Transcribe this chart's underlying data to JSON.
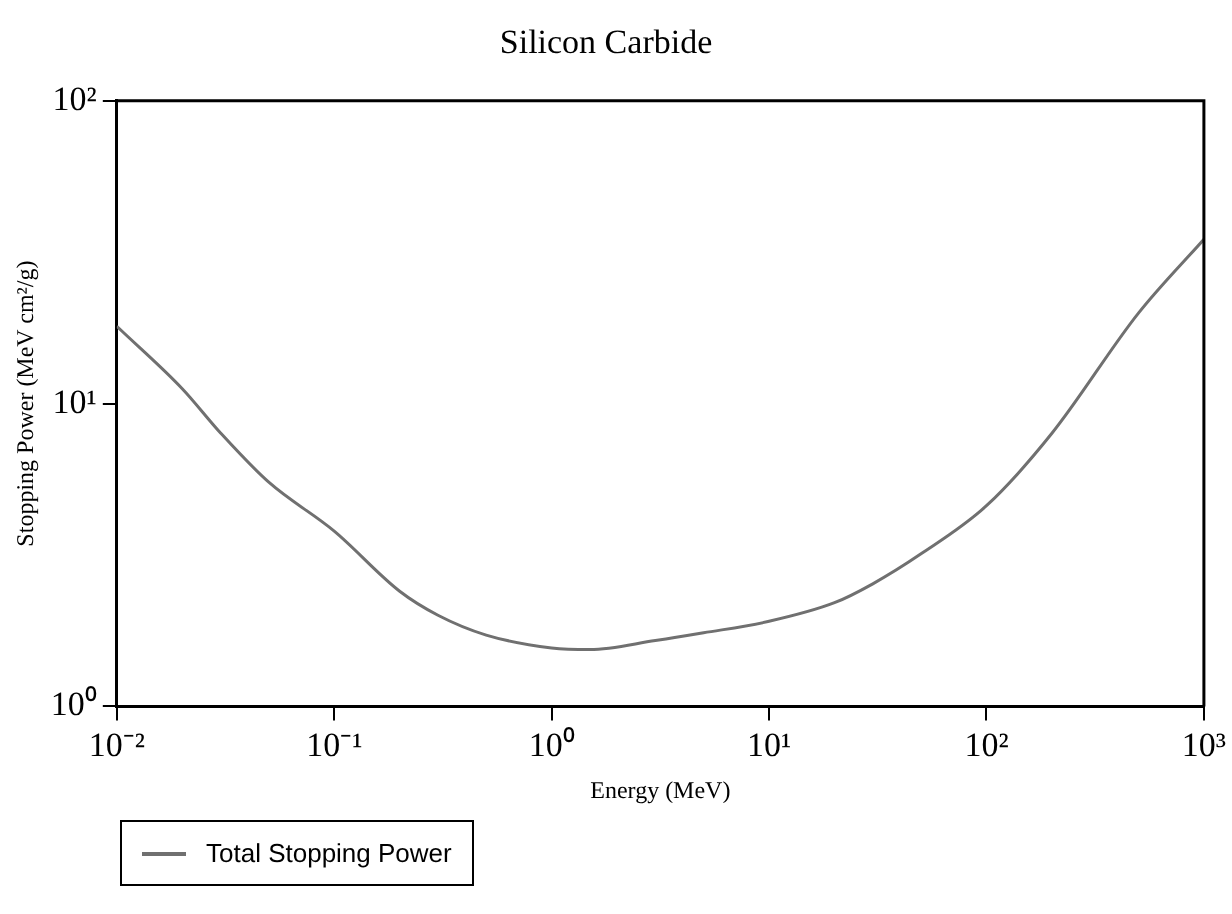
{
  "chart_data": {
    "type": "line",
    "title": "Silicon Carbide",
    "xlabel": "Energy (MeV)",
    "ylabel": "Stopping Power (MeV cm²/g)",
    "log": "xy",
    "xlim": [
      0.01,
      1000
    ],
    "ylim": [
      1,
      100
    ],
    "xticks": [
      {
        "value": 0.01,
        "label": "10⁻²"
      },
      {
        "value": 0.1,
        "label": "10⁻¹"
      },
      {
        "value": 1,
        "label": "10⁰"
      },
      {
        "value": 10,
        "label": "10¹"
      },
      {
        "value": 100,
        "label": "10²"
      },
      {
        "value": 1000,
        "label": "10³"
      }
    ],
    "yticks": [
      {
        "value": 1,
        "label": "10⁰"
      },
      {
        "value": 10,
        "label": "10¹"
      },
      {
        "value": 100,
        "label": "10²"
      }
    ],
    "grid": false,
    "legend": "bottom left",
    "marker": "none",
    "line_style": "solid",
    "x": [
      0.01,
      0.02,
      0.03,
      0.05,
      0.1,
      0.2,
      0.3,
      0.5,
      1,
      1.5,
      3,
      5,
      10,
      20,
      30,
      50,
      100,
      200,
      500,
      1000
    ],
    "series": [
      {
        "name": "Total Stopping Power",
        "color": "#707070",
        "values": [
          18.0,
          11.2,
          8.0,
          5.5,
          3.79,
          2.4,
          2.0,
          1.72,
          1.56,
          1.54,
          1.65,
          1.75,
          1.91,
          2.2,
          2.54,
          3.19,
          4.6,
          7.98,
          19.9,
          34.9
        ]
      }
    ]
  }
}
